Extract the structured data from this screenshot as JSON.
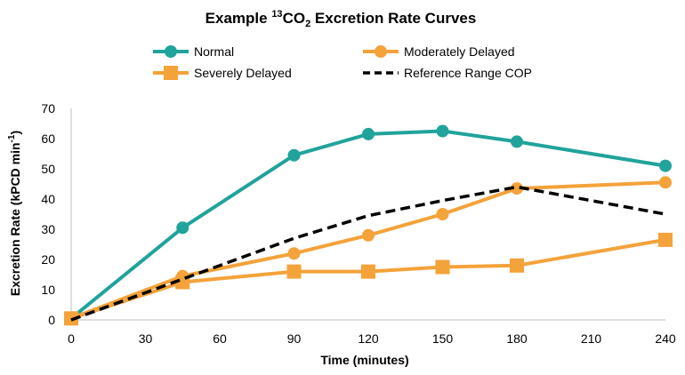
{
  "chart_data": {
    "type": "line",
    "title": {
      "prefix": "Example ",
      "superscript": "13",
      "main": "CO",
      "subscript": "2",
      "suffix": " Excretion Rate Curves"
    },
    "xlabel": "Time (minutes)",
    "ylabel": {
      "main": "Excretion Rate (kPCD min",
      "superscript": "-1",
      "suffix": ")"
    },
    "xlim": [
      0,
      240
    ],
    "ylim": [
      0,
      70
    ],
    "xticks": [
      0,
      30,
      60,
      90,
      120,
      150,
      180,
      210,
      240
    ],
    "yticks": [
      0,
      10,
      20,
      30,
      40,
      50,
      60,
      70
    ],
    "grid": false,
    "legend_position": "top",
    "series": [
      {
        "name": "Normal",
        "color": "#20a39b",
        "marker": "circle",
        "style": "solid",
        "x": [
          0,
          45,
          90,
          120,
          150,
          180,
          240
        ],
        "y": [
          0.5,
          30.5,
          54.5,
          61.5,
          62.5,
          59,
          51
        ]
      },
      {
        "name": "Moderately Delayed",
        "color": "#f4a23a",
        "marker": "circle",
        "style": "solid",
        "x": [
          0,
          45,
          90,
          120,
          150,
          180,
          240
        ],
        "y": [
          0.5,
          14.5,
          22,
          28,
          35,
          43.5,
          45.5
        ]
      },
      {
        "name": "Severely Delayed",
        "color": "#f4a23a",
        "marker": "square",
        "style": "solid",
        "x": [
          0,
          45,
          90,
          120,
          150,
          180,
          240
        ],
        "y": [
          0.5,
          12.5,
          16,
          16,
          17.5,
          18,
          26.5
        ]
      },
      {
        "name": "Reference Range COP",
        "color": "#000000",
        "marker": "none",
        "style": "dashed",
        "x": [
          0,
          45,
          90,
          120,
          150,
          180,
          240
        ],
        "y": [
          0,
          13.5,
          27,
          34.5,
          39.5,
          44,
          35
        ]
      }
    ]
  }
}
